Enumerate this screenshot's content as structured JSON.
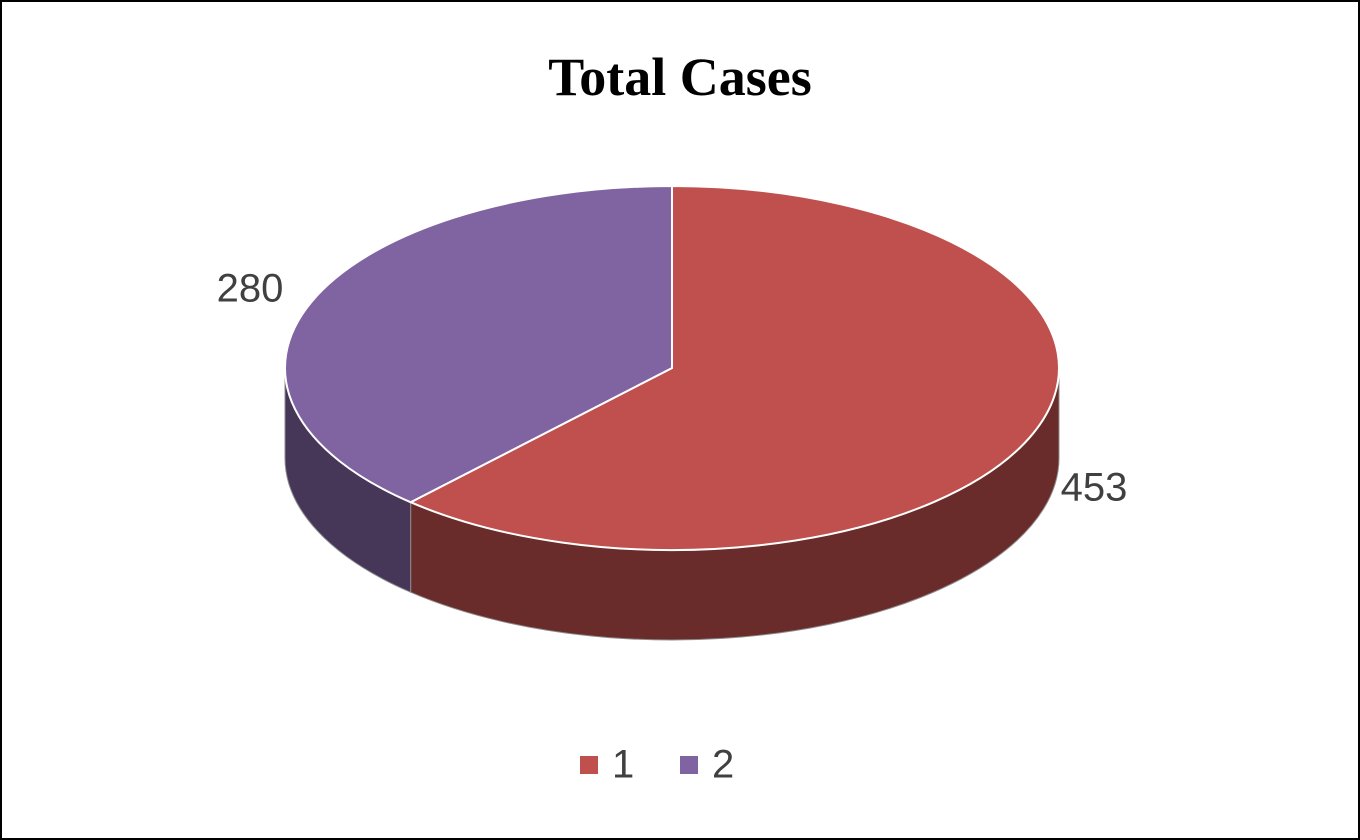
{
  "chart_data": {
    "type": "pie",
    "title": "Total Cases",
    "categories": [
      "1",
      "2"
    ],
    "values": [
      453,
      280
    ],
    "colors": [
      "#c0504d",
      "#8064a2"
    ],
    "legend": "bottom"
  }
}
